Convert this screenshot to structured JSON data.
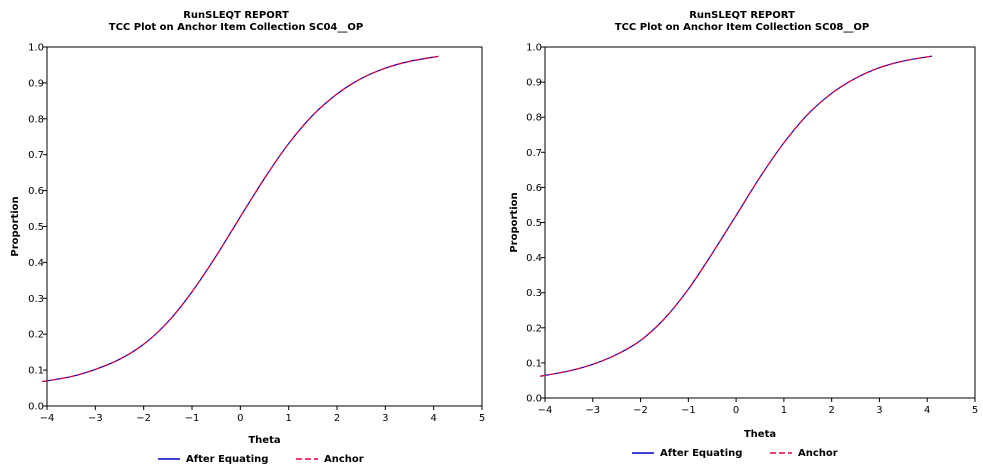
{
  "chart_data": [
    {
      "type": "line",
      "title": "RunSLEQT REPORT",
      "subtitle": "TCC Plot on Anchor Item Collection SC04__OP",
      "xlabel": "Theta",
      "ylabel": "Proportion",
      "xlim": [
        -4,
        5
      ],
      "ylim": [
        0.0,
        1.0
      ],
      "xticks": [
        "−4",
        "−3",
        "−2",
        "−1",
        "0",
        "1",
        "2",
        "3",
        "4",
        "5"
      ],
      "yticks": [
        "0.0",
        "0.1",
        "0.2",
        "0.3",
        "0.4",
        "0.5",
        "0.6",
        "0.7",
        "0.8",
        "0.9",
        "1.0"
      ],
      "grid": false,
      "legend_position": "bottom",
      "x": [
        -4.1,
        -3.5,
        -3.0,
        -2.5,
        -2.0,
        -1.5,
        -1.0,
        -0.5,
        0.0,
        0.5,
        1.0,
        1.5,
        2.0,
        2.5,
        3.0,
        3.5,
        4.1
      ],
      "series": [
        {
          "name": "After Equating",
          "color": "#0000cc",
          "style": "solid",
          "values": [
            0.068,
            0.082,
            0.102,
            0.13,
            0.172,
            0.234,
            0.318,
            0.418,
            0.527,
            0.634,
            0.731,
            0.81,
            0.869,
            0.912,
            0.941,
            0.96,
            0.974
          ]
        },
        {
          "name": "Anchor",
          "color": "#e8003a",
          "style": "dashed",
          "values": [
            0.068,
            0.082,
            0.102,
            0.13,
            0.172,
            0.234,
            0.318,
            0.418,
            0.527,
            0.634,
            0.731,
            0.81,
            0.869,
            0.912,
            0.941,
            0.96,
            0.974
          ]
        }
      ]
    },
    {
      "type": "line",
      "title": "RunSLEQT REPORT",
      "subtitle": "TCC Plot on Anchor Item Collection SC08__OP",
      "xlabel": "Theta",
      "ylabel": "Proportion",
      "xlim": [
        -4,
        5
      ],
      "ylim": [
        0.0,
        1.0
      ],
      "xticks": [
        "−4",
        "−3",
        "−2",
        "−1",
        "0",
        "1",
        "2",
        "3",
        "4",
        "5"
      ],
      "yticks": [
        "0.0",
        "0.1",
        "0.2",
        "0.3",
        "0.4",
        "0.5",
        "0.6",
        "0.7",
        "0.8",
        "0.9",
        "1.0"
      ],
      "grid": false,
      "legend_position": "bottom",
      "x": [
        -4.1,
        -3.5,
        -3.0,
        -2.5,
        -2.0,
        -1.5,
        -1.0,
        -0.5,
        0.0,
        0.5,
        1.0,
        1.5,
        2.0,
        2.5,
        3.0,
        3.5,
        4.1
      ],
      "series": [
        {
          "name": "After Equating",
          "color": "#0000cc",
          "style": "solid",
          "values": [
            0.062,
            0.077,
            0.096,
            0.124,
            0.164,
            0.226,
            0.31,
            0.412,
            0.52,
            0.629,
            0.727,
            0.808,
            0.868,
            0.911,
            0.941,
            0.96,
            0.974
          ]
        },
        {
          "name": "Anchor",
          "color": "#e8003a",
          "style": "dashed",
          "values": [
            0.062,
            0.077,
            0.096,
            0.124,
            0.164,
            0.226,
            0.31,
            0.412,
            0.52,
            0.629,
            0.727,
            0.808,
            0.868,
            0.911,
            0.941,
            0.96,
            0.974
          ]
        }
      ]
    }
  ]
}
